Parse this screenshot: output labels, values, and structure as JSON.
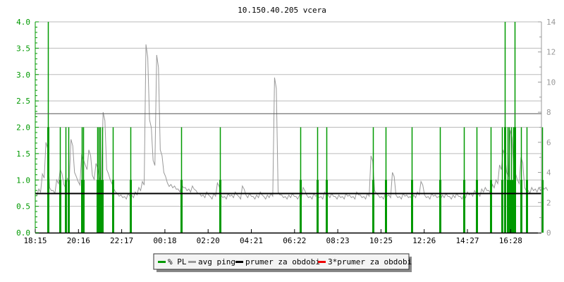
{
  "chart_data": {
    "type": "line",
    "title": "10.150.40.205 vcera",
    "colors": {
      "pl": "#009900",
      "ping": "#999999",
      "mean": "#000000",
      "mean3": "#ee0000",
      "left_axis": "#009900",
      "right_axis": "#999999",
      "grid": "#bbbbbb"
    },
    "left_axis": {
      "ylim": [
        0,
        4.0
      ],
      "ticks": [
        "0.0",
        "0.5",
        "1.0",
        "1.5",
        "2.0",
        "2.5",
        "3.0",
        "3.5",
        "4.0"
      ]
    },
    "right_axis": {
      "ylim": [
        0,
        14
      ],
      "ticks": [
        "0",
        "2",
        "4",
        "6",
        "8",
        "10",
        "12",
        "14"
      ]
    },
    "x_ticks": [
      "18:15",
      "20:16",
      "22:17",
      "00:18",
      "02:20",
      "04:21",
      "06:22",
      "08:23",
      "10:25",
      "12:26",
      "14:27",
      "16:28"
    ],
    "grid": true,
    "legend": {
      "position": "bottom",
      "items": [
        {
          "label": "% PL",
          "color": "#009900"
        },
        {
          "label": "avg ping",
          "color": "#999999"
        },
        {
          "label": "prumer za obdobi",
          "color": "#000000"
        },
        {
          "label": "3*prumer za obdobi",
          "color": "#ee0000"
        }
      ]
    },
    "series": [
      {
        "name": "% PL",
        "axis": "left",
        "points": [
          [
            "18:50",
            4
          ],
          [
            "19:24",
            2
          ],
          [
            "19:39",
            2
          ],
          [
            "19:48",
            2
          ],
          [
            "20:25",
            2
          ],
          [
            "20:29",
            2
          ],
          [
            "21:09",
            2
          ],
          [
            "21:13",
            2
          ],
          [
            "21:17",
            2
          ],
          [
            "21:23",
            2
          ],
          [
            "21:52",
            2
          ],
          [
            "22:41",
            2
          ],
          [
            "01:04",
            2
          ],
          [
            "02:52",
            2
          ],
          [
            "06:37",
            2
          ],
          [
            "07:25",
            2
          ],
          [
            "07:50",
            2
          ],
          [
            "10:01",
            2
          ],
          [
            "10:36",
            2
          ],
          [
            "11:49",
            2
          ],
          [
            "13:08",
            2
          ],
          [
            "14:15",
            2
          ],
          [
            "14:51",
            2
          ],
          [
            "15:30",
            2
          ],
          [
            "16:02",
            2
          ],
          [
            "16:10",
            4
          ],
          [
            "16:17",
            2
          ],
          [
            "16:21",
            2
          ],
          [
            "16:27",
            2
          ],
          [
            "16:33",
            2
          ],
          [
            "16:37",
            4
          ],
          [
            "16:55",
            2
          ],
          [
            "17:11",
            2
          ],
          [
            "17:54",
            2
          ]
        ]
      },
      {
        "name": "avg ping",
        "axis": "right",
        "start": "18:15",
        "step_minutes": 10,
        "values": [
          2.7,
          2.9,
          3.9,
          6.0,
          3.0,
          2.8,
          3.5,
          4.2,
          3.2,
          3.6,
          6.2,
          4.0,
          3.4,
          5.2,
          4.5,
          5.5,
          3.8,
          4.6,
          3.6,
          8.0,
          4.2,
          3.5,
          2.9,
          2.6,
          2.5,
          2.4,
          2.6,
          2.5,
          2.7,
          3.0,
          3.4,
          12.5,
          7.5,
          4.8,
          11.8,
          5.5,
          4.0,
          3.3,
          3.2,
          3.1,
          2.9,
          3.2,
          3.0,
          2.9,
          3.1,
          2.8,
          2.6,
          2.5,
          2.7,
          2.4,
          2.6,
          3.3,
          2.5,
          2.4,
          2.6,
          2.5,
          2.7,
          2.4,
          3.1,
          2.5,
          2.6,
          2.4,
          2.5,
          2.7,
          2.4,
          2.5,
          2.6,
          10.3,
          2.7,
          2.5,
          2.4,
          2.5,
          2.6,
          2.4,
          2.5,
          3.0,
          2.5,
          2.4,
          2.6,
          2.5,
          2.4,
          2.7,
          2.5,
          2.6,
          2.4,
          2.5,
          2.4,
          2.6,
          2.5,
          2.4,
          2.7,
          2.5,
          2.4,
          2.6,
          5.1,
          2.8,
          2.5,
          2.4,
          2.6,
          2.5,
          4.0,
          2.5,
          2.4,
          2.6,
          2.5,
          2.4,
          2.5,
          2.7,
          3.4,
          2.5,
          2.4,
          2.6,
          2.5,
          2.4,
          2.5,
          2.6,
          2.4,
          2.5,
          2.6,
          2.4,
          2.5,
          2.7,
          2.6,
          2.8,
          2.6,
          2.9,
          3.0,
          2.8,
          3.2,
          3.5,
          4.5,
          5.5,
          4.0,
          6.8,
          4.2,
          3.5,
          5.0,
          3.0,
          2.8,
          3.0,
          2.9,
          3.0,
          3.1,
          3.0
        ]
      },
      {
        "name": "prumer za obdobi",
        "axis": "right",
        "value": 2.6
      },
      {
        "name": "3*prumer za obdobi",
        "axis": "right",
        "value": 7.9
      }
    ]
  }
}
